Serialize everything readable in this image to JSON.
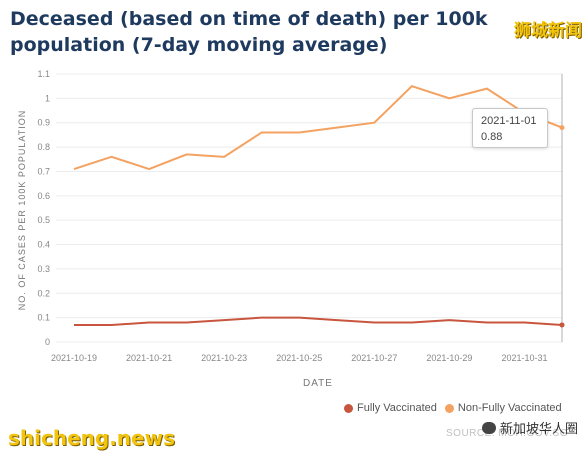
{
  "watermark_top": "狮城新闻",
  "watermark_bottom": "shicheng.news",
  "watermark_badge": "新加坡华人圈",
  "source": "SOURCE: MOH.GOV.SG",
  "tooltip": {
    "date": "2021-11-01",
    "value": "0.88"
  },
  "colors": {
    "fully": "#c8553d",
    "non_fully": "#f4a261",
    "title": "#1f3a5f",
    "cursor": "#b0b0b0"
  },
  "chart_data": {
    "type": "line",
    "title": "Deceased (based on time of death) per 100k population (7-day moving average)",
    "xlabel": "DATE",
    "ylabel": "NO. OF CASES PER 100K POPULATION",
    "ylim": [
      0,
      1.1
    ],
    "yticks": [
      "0",
      "0.1",
      "0.2",
      "0.3",
      "0.4",
      "0.5",
      "0.6",
      "0.7",
      "0.8",
      "0.9",
      "1",
      "1.1"
    ],
    "x": [
      "2021-10-19",
      "2021-10-20",
      "2021-10-21",
      "2021-10-22",
      "2021-10-23",
      "2021-10-24",
      "2021-10-25",
      "2021-10-26",
      "2021-10-27",
      "2021-10-28",
      "2021-10-29",
      "2021-10-30",
      "2021-10-31",
      "2021-11-01"
    ],
    "xticks": [
      "2021-10-19",
      "2021-10-21",
      "2021-10-23",
      "2021-10-25",
      "2021-10-27",
      "2021-10-29",
      "2021-10-31"
    ],
    "series": [
      {
        "name": "Fully Vaccinated",
        "values": [
          0.07,
          0.07,
          0.08,
          0.08,
          0.09,
          0.1,
          0.1,
          0.09,
          0.08,
          0.08,
          0.09,
          0.08,
          0.08,
          0.07
        ]
      },
      {
        "name": "Non-Fully Vaccinated",
        "values": [
          0.71,
          0.76,
          0.71,
          0.77,
          0.76,
          0.86,
          0.86,
          0.88,
          0.9,
          1.05,
          1.0,
          1.04,
          0.94,
          0.88
        ]
      }
    ],
    "legend_position": "bottom-right",
    "grid": true
  }
}
